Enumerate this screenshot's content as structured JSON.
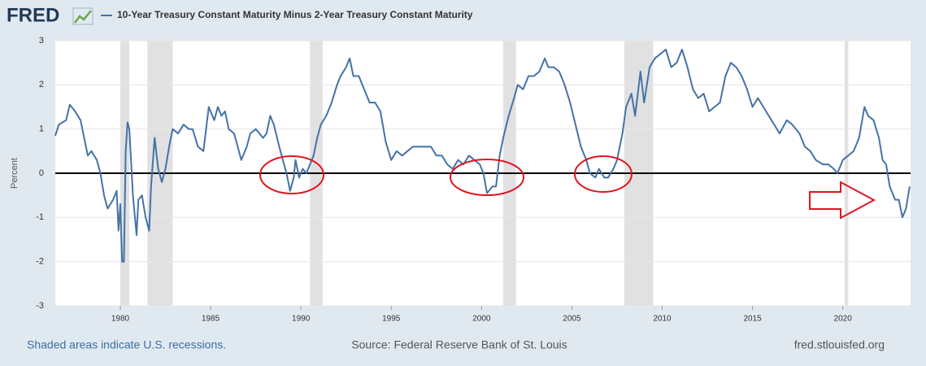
{
  "logo": "FRED",
  "chart_data": {
    "type": "line",
    "y_label": "Percent",
    "shaded_regions": [
      [
        1980.0,
        1980.5
      ],
      [
        1981.5,
        1982.9
      ],
      [
        1990.5,
        1991.2
      ],
      [
        2001.2,
        2001.9
      ],
      [
        2007.9,
        2009.5
      ],
      [
        2020.1,
        2020.3
      ]
    ],
    "xlim": [
      1976.4,
      2023.75
    ],
    "xticks": [
      1980,
      1985,
      1990,
      1995,
      2000,
      2005,
      2010,
      2015,
      2020
    ],
    "ylim": [
      -3,
      3
    ],
    "yticks": [
      -3,
      -2,
      -1,
      0,
      1,
      2,
      3
    ],
    "grid": true,
    "x": [
      1976.4,
      1976.6,
      1977.0,
      1977.2,
      1977.5,
      1977.8,
      1978.0,
      1978.2,
      1978.4,
      1978.7,
      1978.9,
      1979.1,
      1979.3,
      1979.6,
      1979.8,
      1979.9,
      1980.0,
      1980.1,
      1980.2,
      1980.3,
      1980.4,
      1980.5,
      1980.7,
      1980.9,
      1981.0,
      1981.2,
      1981.4,
      1981.6,
      1981.7,
      1981.9,
      1982.1,
      1982.3,
      1982.5,
      1982.7,
      1982.9,
      1983.2,
      1983.5,
      1983.8,
      1984.0,
      1984.3,
      1984.6,
      1984.9,
      1985.2,
      1985.4,
      1985.6,
      1985.8,
      1986.0,
      1986.3,
      1986.5,
      1986.7,
      1987.0,
      1987.2,
      1987.5,
      1987.7,
      1987.9,
      1988.1,
      1988.3,
      1988.5,
      1988.8,
      1989.0,
      1989.2,
      1989.4,
      1989.6,
      1989.7,
      1989.9,
      1990.1,
      1990.3,
      1990.5,
      1990.7,
      1990.9,
      1991.1,
      1991.4,
      1991.7,
      1992.0,
      1992.2,
      1992.5,
      1992.7,
      1992.9,
      1993.2,
      1993.5,
      1993.8,
      1994.1,
      1994.4,
      1994.7,
      1995.0,
      1995.3,
      1995.6,
      1995.9,
      1996.2,
      1996.5,
      1996.8,
      1997.2,
      1997.5,
      1997.8,
      1998.1,
      1998.4,
      1998.7,
      1999.0,
      1999.3,
      1999.6,
      1999.9,
      2000.1,
      2000.3,
      2000.6,
      2000.8,
      2001.0,
      2001.2,
      2001.5,
      2001.8,
      2002.0,
      2002.3,
      2002.6,
      2002.9,
      2003.2,
      2003.5,
      2003.7,
      2004.0,
      2004.3,
      2004.6,
      2004.9,
      2005.2,
      2005.5,
      2005.8,
      2006.0,
      2006.3,
      2006.5,
      2006.8,
      2007.0,
      2007.3,
      2007.5,
      2007.8,
      2008.0,
      2008.3,
      2008.5,
      2008.8,
      2009.0,
      2009.3,
      2009.6,
      2009.9,
      2010.2,
      2010.5,
      2010.8,
      2011.1,
      2011.4,
      2011.7,
      2012.0,
      2012.3,
      2012.6,
      2012.9,
      2013.2,
      2013.5,
      2013.8,
      2014.1,
      2014.4,
      2014.7,
      2015.0,
      2015.3,
      2015.6,
      2015.9,
      2016.2,
      2016.5,
      2016.9,
      2017.2,
      2017.6,
      2017.9,
      2018.2,
      2018.5,
      2018.9,
      2019.2,
      2019.5,
      2019.7,
      2020.0,
      2020.3,
      2020.6,
      2020.9,
      2021.2,
      2021.4,
      2021.7,
      2022.0,
      2022.2,
      2022.4,
      2022.6,
      2022.9,
      2023.1,
      2023.3,
      2023.5,
      2023.7
    ],
    "series": [
      {
        "name": "10-Year Treasury Constant Maturity Minus 2-Year Treasury Constant Maturity",
        "color": "#4572a7",
        "values": [
          0.85,
          1.1,
          1.2,
          1.55,
          1.4,
          1.2,
          0.8,
          0.4,
          0.5,
          0.3,
          0,
          -0.5,
          -0.8,
          -0.6,
          -0.4,
          -1.3,
          -0.7,
          -2.0,
          -2.0,
          0.5,
          1.15,
          1.0,
          -0.5,
          -1.4,
          -0.6,
          -0.5,
          -1.0,
          -1.3,
          -0.3,
          0.8,
          0.1,
          -0.2,
          0.1,
          0.6,
          1.0,
          0.9,
          1.1,
          1.0,
          1.0,
          0.6,
          0.5,
          1.5,
          1.2,
          1.5,
          1.3,
          1.4,
          1.0,
          0.9,
          0.6,
          0.3,
          0.6,
          0.9,
          1.0,
          0.9,
          0.8,
          0.9,
          1.3,
          1.1,
          0.6,
          0.3,
          0.0,
          -0.4,
          -0.1,
          0.3,
          -0.1,
          0.1,
          0.0,
          0.2,
          0.4,
          0.8,
          1.1,
          1.3,
          1.6,
          2.0,
          2.2,
          2.4,
          2.6,
          2.2,
          2.2,
          1.9,
          1.6,
          1.6,
          1.4,
          0.7,
          0.3,
          0.5,
          0.4,
          0.5,
          0.6,
          0.6,
          0.6,
          0.6,
          0.4,
          0.4,
          0.2,
          0.1,
          0.3,
          0.2,
          0.4,
          0.3,
          0.2,
          0.0,
          -0.45,
          -0.3,
          -0.3,
          0.4,
          0.8,
          1.3,
          1.7,
          2.0,
          1.9,
          2.2,
          2.2,
          2.3,
          2.6,
          2.4,
          2.4,
          2.3,
          2.0,
          1.6,
          1.1,
          0.6,
          0.3,
          0.0,
          -0.1,
          0.1,
          -0.1,
          -0.1,
          0.1,
          0.3,
          0.9,
          1.5,
          1.8,
          1.3,
          2.3,
          1.6,
          2.4,
          2.6,
          2.7,
          2.8,
          2.4,
          2.5,
          2.8,
          2.4,
          1.9,
          1.7,
          1.8,
          1.4,
          1.5,
          1.6,
          2.2,
          2.5,
          2.4,
          2.2,
          1.9,
          1.5,
          1.7,
          1.5,
          1.3,
          1.1,
          0.9,
          1.2,
          1.1,
          0.9,
          0.6,
          0.5,
          0.3,
          0.2,
          0.2,
          0.1,
          0.0,
          0.3,
          0.4,
          0.5,
          0.8,
          1.5,
          1.3,
          1.2,
          0.8,
          0.3,
          0.2,
          -0.3,
          -0.6,
          -0.6,
          -1.0,
          -0.8,
          -0.3
        ]
      }
    ]
  },
  "footer": {
    "left": "Shaded areas indicate U.S. recessions.",
    "center": "Source: Federal Reserve Bank of St. Louis",
    "right": "fred.stlouisfed.org"
  }
}
